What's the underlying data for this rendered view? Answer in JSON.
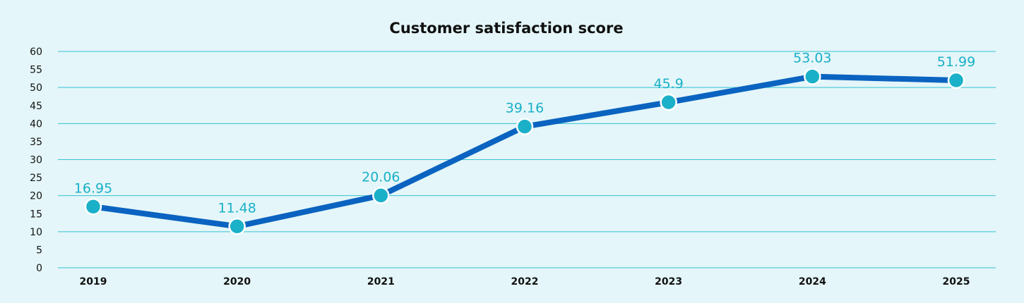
{
  "chart_data": {
    "type": "line",
    "title": "Customer satisfaction score",
    "xlabel": "",
    "ylabel": "",
    "categories": [
      "2019",
      "2020",
      "2021",
      "2022",
      "2023",
      "2024",
      "2025"
    ],
    "series": [
      {
        "name": "Customer satisfaction score",
        "values": [
          16.95,
          11.48,
          20.06,
          39.16,
          45.9,
          53.03,
          51.99
        ],
        "labels": [
          "16.95",
          "11.48",
          "20.06",
          "39.16",
          "45.9",
          "53.03",
          "51.99"
        ]
      }
    ],
    "ylim": [
      0,
      60
    ],
    "yticks": [
      "0",
      "5",
      "10",
      "15",
      "20",
      "25",
      "30",
      "35",
      "40",
      "45",
      "50",
      "55",
      "60"
    ],
    "grid": true,
    "colors": {
      "line": "#0a63c0",
      "marker": "#1ab0c8",
      "label": "#1ab0c8",
      "grid": "#35c3d3",
      "background": "#e4f6f9"
    }
  }
}
